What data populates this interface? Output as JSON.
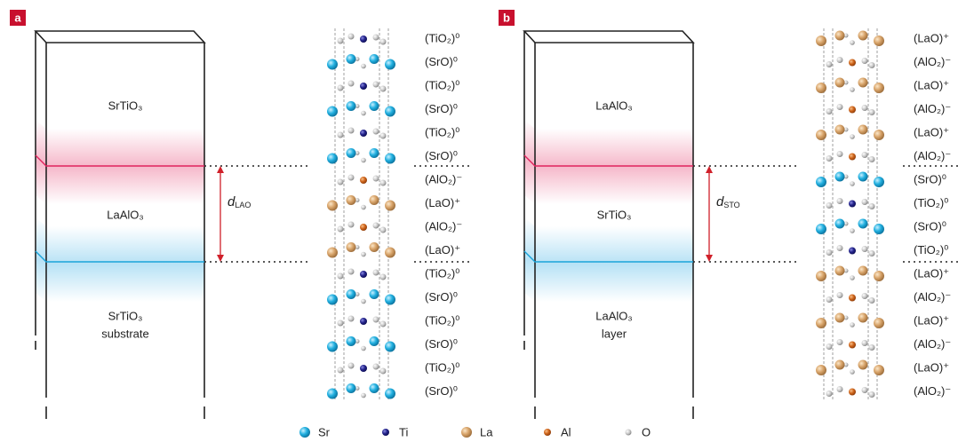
{
  "panels": [
    {
      "label": "a",
      "top_layer": "SrTiO₃",
      "middle_layer": "LaAlO₃",
      "bottom_layer": [
        "SrTiO₃",
        "substrate"
      ],
      "spacing": {
        "symbol": "d",
        "subscript": "LAO"
      },
      "planes": [
        "(TiO₂)⁰",
        "(SrO)⁰",
        "(TiO₂)⁰",
        "(SrO)⁰",
        "(TiO₂)⁰",
        "(SrO)⁰",
        "(AlO₂)⁻",
        "(LaO)⁺",
        "(AlO₂)⁻",
        "(LaO)⁺",
        "(TiO₂)⁰",
        "(SrO)⁰",
        "(TiO₂)⁰",
        "(SrO)⁰",
        "(TiO₂)⁰",
        "(SrO)⁰"
      ]
    },
    {
      "label": "b",
      "top_layer": "LaAlO₃",
      "middle_layer": "SrTiO₃",
      "bottom_layer": [
        "LaAlO₃",
        "layer"
      ],
      "spacing": {
        "symbol": "d",
        "subscript": "STO"
      },
      "planes": [
        "(LaO)⁺",
        "(AlO₂)⁻",
        "(LaO)⁺",
        "(AlO₂)⁻",
        "(LaO)⁺",
        "(AlO₂)⁻",
        "(SrO)⁰",
        "(TiO₂)⁰",
        "(SrO)⁰",
        "(TiO₂)⁰",
        "(LaO)⁺",
        "(AlO₂)⁻",
        "(LaO)⁺",
        "(AlO₂)⁻",
        "(LaO)⁺",
        "(AlO₂)⁻"
      ]
    }
  ],
  "legend": [
    "Sr",
    "Ti",
    "La",
    "Al",
    "O"
  ]
}
